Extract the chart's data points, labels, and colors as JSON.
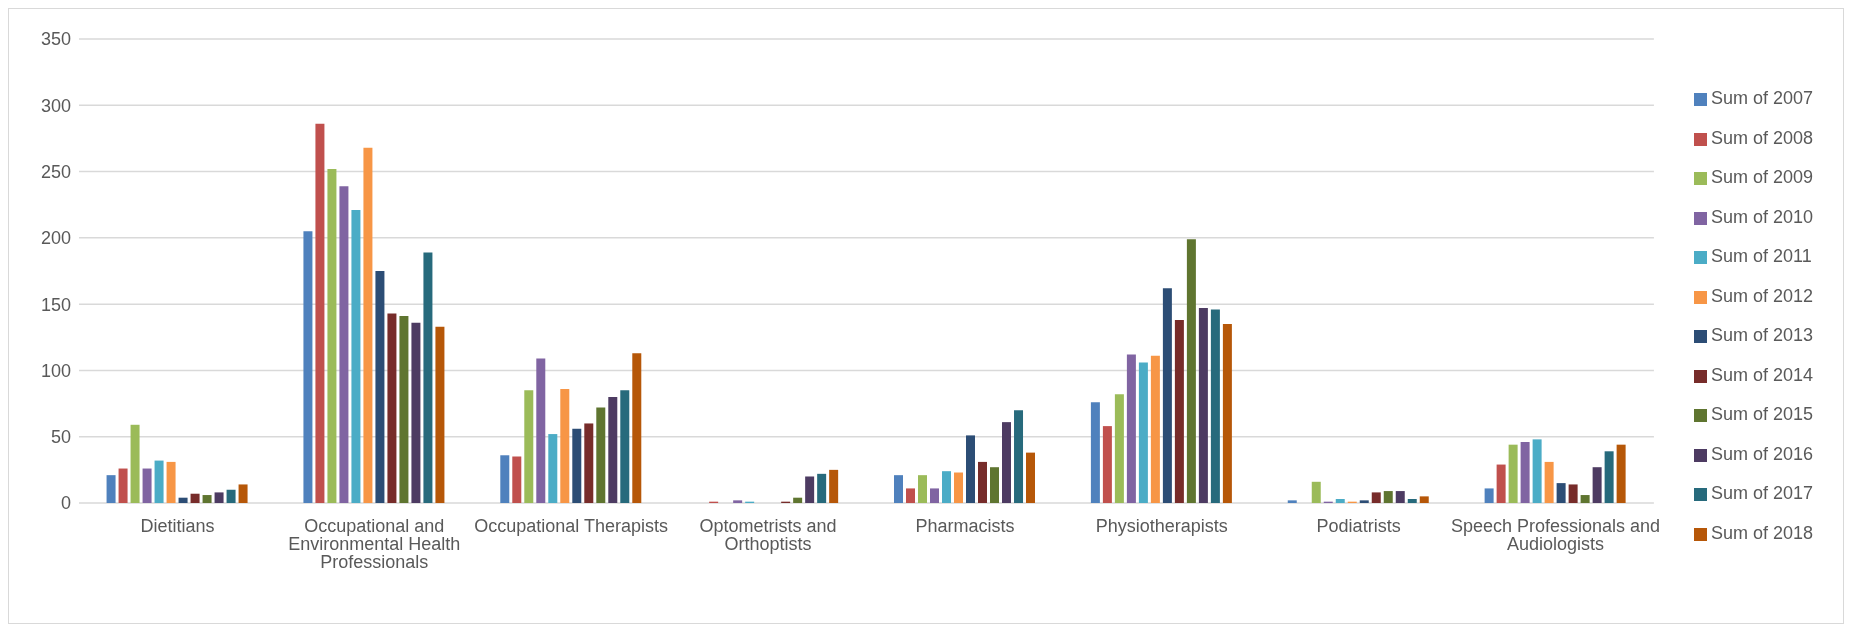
{
  "chart_data": {
    "type": "bar",
    "categories": [
      "Dietitians",
      "Occupational and Environmental Health Professionals",
      "Occupational Therapists",
      "Optometrists and Orthoptists",
      "Pharmacists",
      "Physiotherapists",
      "Podiatrists",
      "Speech Professionals and Audiologists"
    ],
    "series": [
      {
        "name": "Sum of 2007",
        "color": "#4f81bd",
        "values": [
          21,
          205,
          36,
          0,
          21,
          76,
          2,
          11
        ]
      },
      {
        "name": "Sum of 2008",
        "color": "#c0504d",
        "values": [
          26,
          286,
          35,
          1,
          11,
          58,
          0,
          29
        ]
      },
      {
        "name": "Sum of 2009",
        "color": "#9bbb59",
        "values": [
          59,
          252,
          85,
          0,
          21,
          82,
          16,
          44
        ]
      },
      {
        "name": "Sum of 2010",
        "color": "#8064a2",
        "values": [
          26,
          239,
          109,
          2,
          11,
          112,
          1,
          46
        ]
      },
      {
        "name": "Sum of 2011",
        "color": "#4bacc6",
        "values": [
          32,
          221,
          52,
          1,
          24,
          106,
          3,
          48
        ]
      },
      {
        "name": "Sum of 2012",
        "color": "#f79646",
        "values": [
          31,
          268,
          86,
          0,
          23,
          111,
          1,
          31
        ]
      },
      {
        "name": "Sum of 2013",
        "color": "#2c4d75",
        "values": [
          4,
          175,
          56,
          0,
          51,
          162,
          2,
          15
        ]
      },
      {
        "name": "Sum of 2014",
        "color": "#772c2a",
        "values": [
          7,
          143,
          60,
          1,
          31,
          138,
          8,
          14
        ]
      },
      {
        "name": "Sum of 2015",
        "color": "#5f7530",
        "values": [
          6,
          141,
          72,
          4,
          27,
          199,
          9,
          6
        ]
      },
      {
        "name": "Sum of 2016",
        "color": "#4d3b62",
        "values": [
          8,
          136,
          80,
          20,
          61,
          147,
          9,
          27
        ]
      },
      {
        "name": "Sum of 2017",
        "color": "#276a7c",
        "values": [
          10,
          189,
          85,
          22,
          70,
          146,
          3,
          39
        ]
      },
      {
        "name": "Sum of 2018",
        "color": "#b65708",
        "values": [
          14,
          133,
          113,
          25,
          38,
          135,
          5,
          44
        ]
      }
    ],
    "ylim": [
      0,
      350
    ],
    "yticks": [
      0,
      50,
      100,
      150,
      200,
      250,
      300,
      350
    ],
    "grid": "y",
    "legend": "right"
  }
}
